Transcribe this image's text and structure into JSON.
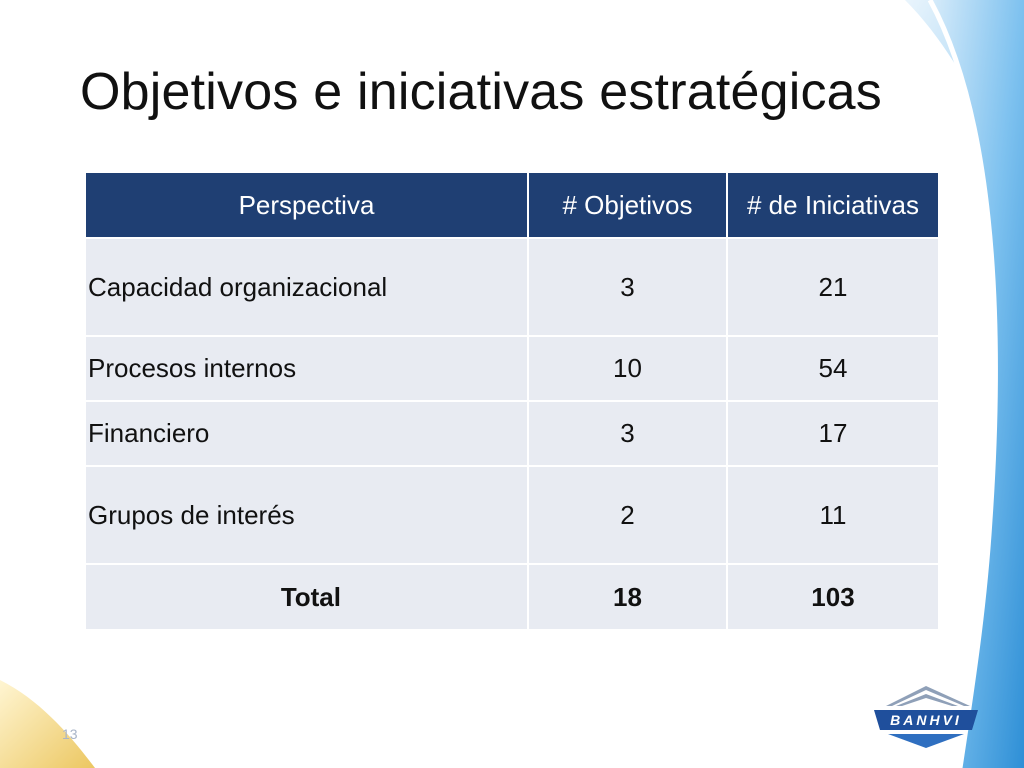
{
  "slide": {
    "title": "Objetivos e iniciativas estratégicas",
    "page_number": "13"
  },
  "table": {
    "headers": [
      "Perspectiva",
      "# Objetivos",
      "# de Iniciativas"
    ],
    "rows": [
      {
        "perspectiva": "Capacidad organizacional",
        "objetivos": "3",
        "iniciativas": "21"
      },
      {
        "perspectiva": "Procesos internos",
        "objetivos": "10",
        "iniciativas": "54"
      },
      {
        "perspectiva": "Financiero",
        "objetivos": "3",
        "iniciativas": "17"
      },
      {
        "perspectiva": "Grupos de interés",
        "objetivos": "2",
        "iniciativas": "11"
      }
    ],
    "total": {
      "label": "Total",
      "objetivos": "18",
      "iniciativas": "103"
    }
  },
  "logo": {
    "text": "BANHVI"
  },
  "colors": {
    "header_bg": "#1f3f73",
    "row_bg": "#e8ebf2",
    "accent_blue": "#4aa3df",
    "accent_gold": "#e9c24a"
  }
}
